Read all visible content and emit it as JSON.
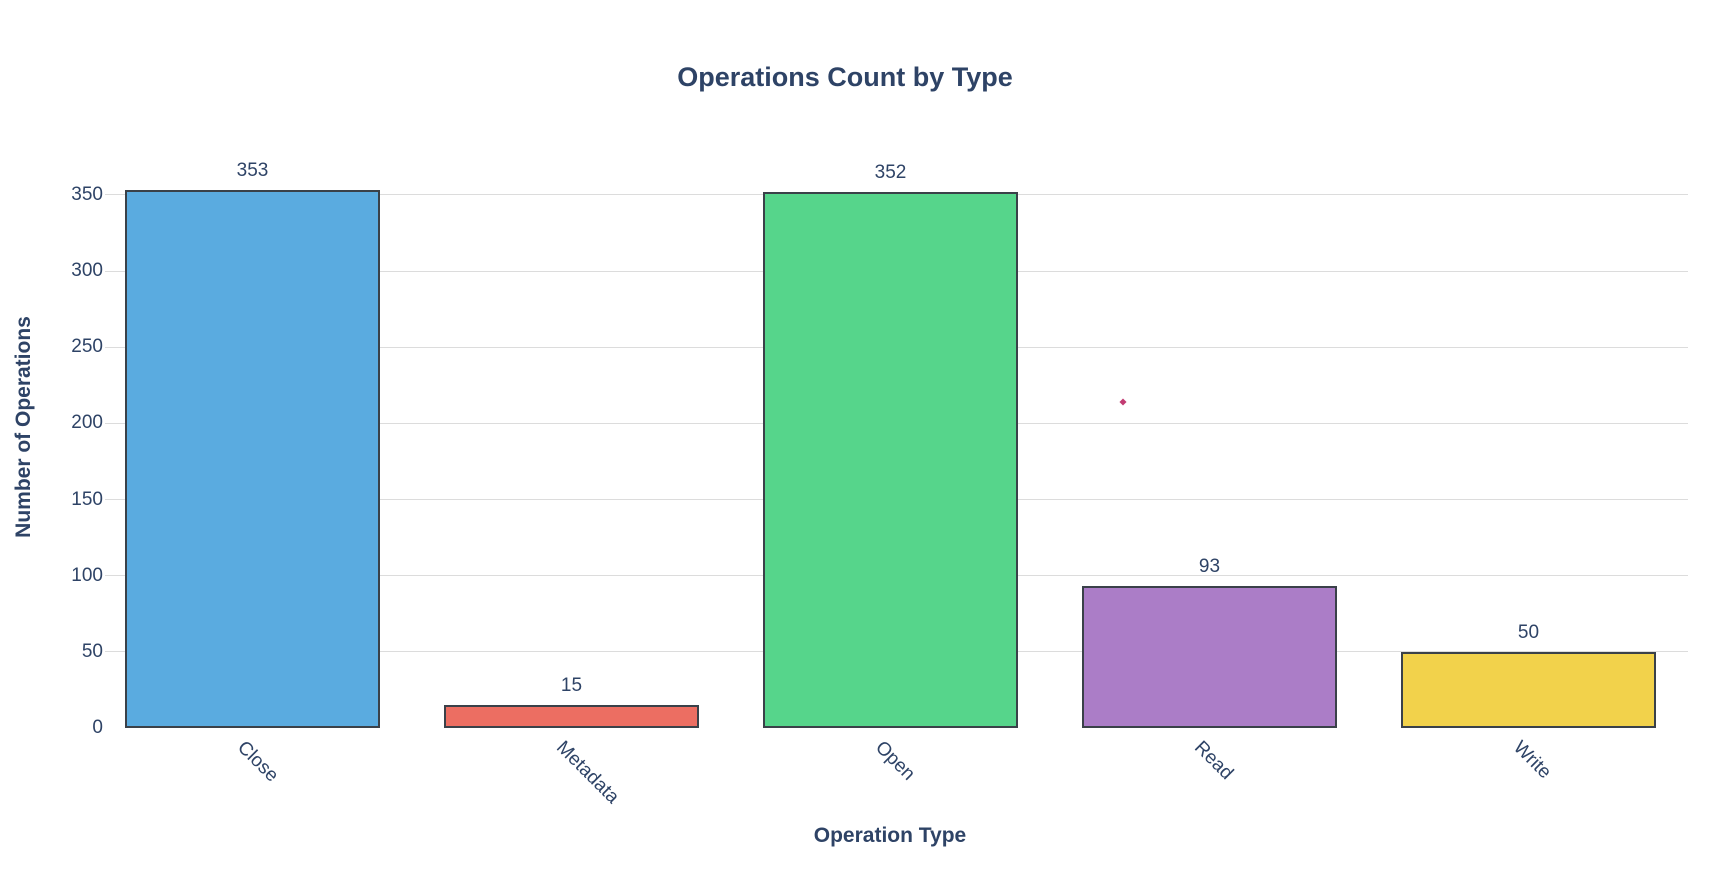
{
  "chart_data": {
    "type": "bar",
    "title": "Operations Count by Type",
    "xlabel": "Operation Type",
    "ylabel": "Number of Operations",
    "categories": [
      "Close",
      "Metadata",
      "Open",
      "Read",
      "Write"
    ],
    "values": [
      353,
      15,
      352,
      93,
      50
    ],
    "value_labels": [
      "353",
      "15",
      "352",
      "93",
      "50"
    ],
    "bar_colors": [
      "#5AABE0",
      "#EC6E62",
      "#56D58B",
      "#AB7DC7",
      "#F2D24B"
    ],
    "bar_edge_color": "#3A4149",
    "yticks": [
      0,
      50,
      100,
      150,
      200,
      250,
      300,
      350
    ],
    "ylim": [
      0,
      386
    ],
    "grid": true,
    "gridline_color": "#DCDCDC",
    "text_color": "#2E4366",
    "x_tick_rotation": -45,
    "legend": "none",
    "stray_marker": {
      "value": 214,
      "category_position": 3.23,
      "color": "#C23B72"
    }
  }
}
